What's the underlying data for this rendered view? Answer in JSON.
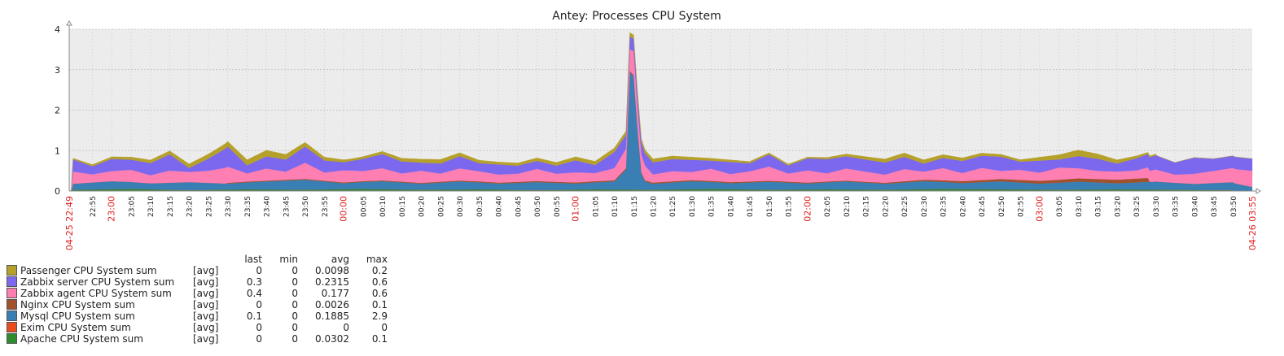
{
  "chart_data": {
    "type": "area",
    "stacked": true,
    "title": "Antey: Processes CPU System",
    "ylim": [
      0,
      4
    ],
    "yticks": [
      "0",
      "1",
      "2",
      "3",
      "4"
    ],
    "x_start_label": "04-25 22:49",
    "x_end_label": "04-26 03:55",
    "x_range": [
      "22:49",
      "03:55"
    ],
    "x_tick_labels": [
      "22:55",
      "23:00",
      "23:05",
      "23:10",
      "23:15",
      "23:20",
      "23:25",
      "23:30",
      "23:35",
      "23:40",
      "23:45",
      "23:50",
      "23:55",
      "00:00",
      "00:05",
      "00:10",
      "00:15",
      "00:20",
      "00:25",
      "00:30",
      "00:35",
      "00:40",
      "00:45",
      "00:50",
      "00:55",
      "01:00",
      "01:05",
      "01:10",
      "01:15",
      "01:20",
      "01:25",
      "01:30",
      "01:35",
      "01:40",
      "01:45",
      "01:50",
      "01:55",
      "02:00",
      "02:05",
      "02:10",
      "02:15",
      "02:20",
      "02:25",
      "02:30",
      "02:35",
      "02:40",
      "02:45",
      "02:50",
      "02:55",
      "03:00",
      "03:05",
      "03:10",
      "03:15",
      "03:20",
      "03:25",
      "03:30",
      "03:35",
      "03:40",
      "03:45",
      "03:50"
    ],
    "x_hour_labels": [
      "23:00",
      "00:00",
      "01:00",
      "02:00",
      "03:00"
    ],
    "grid": true,
    "legend_position": "bottom-left",
    "legend_headers": {
      "last": "last",
      "min": "min",
      "avg": "avg",
      "max": "max"
    },
    "series": [
      {
        "name": "Passenger CPU System sum",
        "func": "[avg]",
        "color": "#B5A12A",
        "last": "0",
        "min": "0",
        "avg": "0.0098",
        "max": "0.2",
        "x": [
          "22:50",
          "23:20",
          "23:40",
          "00:02",
          "00:25",
          "00:40",
          "01:12",
          "01:40",
          "02:00",
          "02:25",
          "02:55",
          "03:10",
          "03:30"
        ],
        "values": [
          0.03,
          0.1,
          0.15,
          0.05,
          0.1,
          0.06,
          0.1,
          0.05,
          0.03,
          0.1,
          0.05,
          0.15,
          0.03
        ]
      },
      {
        "name": "Zabbix server CPU System sum",
        "func": "[avg]",
        "color": "#7B68EE",
        "last": "0.3",
        "min": "0",
        "avg": "0.2315",
        "max": "0.6",
        "x": [
          "22:50",
          "22:55",
          "23:00",
          "23:05",
          "23:10",
          "23:15",
          "23:20",
          "23:25",
          "23:30",
          "23:35",
          "23:40",
          "23:45",
          "23:50",
          "23:55",
          "00:00",
          "00:05",
          "00:10",
          "00:15",
          "00:20",
          "00:25",
          "00:30",
          "00:35",
          "00:40",
          "00:45",
          "00:50",
          "00:55",
          "01:00",
          "01:05",
          "01:10",
          "01:15",
          "01:20",
          "01:25",
          "01:30",
          "01:35",
          "01:40",
          "01:45",
          "01:50",
          "01:55",
          "02:00",
          "02:05",
          "02:10",
          "02:15",
          "02:20",
          "02:25",
          "02:30",
          "02:35",
          "02:40",
          "02:45",
          "02:50",
          "02:55",
          "03:00",
          "03:05",
          "03:10",
          "03:15",
          "03:20",
          "03:25",
          "03:30",
          "03:35",
          "03:40",
          "03:45",
          "03:50",
          "03:55"
        ],
        "values": [
          0.3,
          0.2,
          0.3,
          0.25,
          0.3,
          0.4,
          0.1,
          0.3,
          0.5,
          0.2,
          0.3,
          0.3,
          0.4,
          0.3,
          0.2,
          0.3,
          0.35,
          0.3,
          0.2,
          0.25,
          0.3,
          0.2,
          0.25,
          0.2,
          0.2,
          0.2,
          0.3,
          0.2,
          0.4,
          0.3,
          0.3,
          0.3,
          0.3,
          0.2,
          0.3,
          0.2,
          0.3,
          0.2,
          0.3,
          0.35,
          0.3,
          0.3,
          0.3,
          0.3,
          0.2,
          0.25,
          0.3,
          0.3,
          0.35,
          0.2,
          0.3,
          0.2,
          0.3,
          0.3,
          0.2,
          0.3,
          0.35,
          0.3,
          0.4,
          0.3,
          0.3,
          0.3
        ]
      },
      {
        "name": "Zabbix agent CPU System sum",
        "func": "[avg]",
        "color": "#FF7FB3",
        "last": "0.4",
        "min": "0",
        "avg": "0.177",
        "max": "0.6",
        "x": [
          "22:50",
          "22:55",
          "23:00",
          "23:05",
          "23:10",
          "23:15",
          "23:20",
          "23:25",
          "23:30",
          "23:35",
          "23:40",
          "23:45",
          "23:50",
          "23:55",
          "00:00",
          "00:05",
          "00:10",
          "00:15",
          "00:20",
          "00:25",
          "00:30",
          "00:35",
          "00:40",
          "00:45",
          "00:50",
          "00:55",
          "01:00",
          "01:05",
          "01:10",
          "01:15",
          "01:20",
          "01:25",
          "01:30",
          "01:35",
          "01:40",
          "01:45",
          "01:50",
          "01:55",
          "02:00",
          "02:05",
          "02:10",
          "02:15",
          "02:20",
          "02:25",
          "02:30",
          "02:35",
          "02:40",
          "02:45",
          "02:50",
          "02:55",
          "03:00",
          "03:05",
          "03:10",
          "03:15",
          "03:20",
          "03:25",
          "03:30",
          "03:35",
          "03:40",
          "03:45",
          "03:50",
          "03:55"
        ],
        "values": [
          0.3,
          0.2,
          0.25,
          0.3,
          0.2,
          0.3,
          0.25,
          0.3,
          0.4,
          0.2,
          0.3,
          0.2,
          0.4,
          0.2,
          0.3,
          0.25,
          0.3,
          0.2,
          0.3,
          0.2,
          0.3,
          0.25,
          0.2,
          0.2,
          0.3,
          0.2,
          0.25,
          0.2,
          0.3,
          0.6,
          0.2,
          0.25,
          0.2,
          0.3,
          0.2,
          0.25,
          0.35,
          0.2,
          0.3,
          0.2,
          0.3,
          0.25,
          0.2,
          0.3,
          0.2,
          0.3,
          0.2,
          0.3,
          0.2,
          0.25,
          0.2,
          0.3,
          0.25,
          0.2,
          0.2,
          0.2,
          0.3,
          0.2,
          0.25,
          0.3,
          0.35,
          0.4
        ]
      },
      {
        "name": "Nginx CPU System sum",
        "func": "[avg]",
        "color": "#A0522D",
        "last": "0",
        "min": "0",
        "avg": "0.0026",
        "max": "0.1",
        "x": [
          "23:30",
          "00:10",
          "01:15",
          "02:15",
          "03:28"
        ],
        "values": [
          0.02,
          0.02,
          0.03,
          0.02,
          0.1
        ]
      },
      {
        "name": "Mysql CPU System sum",
        "func": "[avg]",
        "color": "#3A7FB3",
        "last": "0.1",
        "min": "0",
        "avg": "0.1885",
        "max": "2.9",
        "x": [
          "22:50",
          "23:00",
          "23:10",
          "23:20",
          "23:30",
          "23:40",
          "23:50",
          "00:00",
          "00:10",
          "00:20",
          "00:30",
          "00:40",
          "00:50",
          "01:00",
          "01:10",
          "01:13",
          "01:14",
          "01:15",
          "01:16",
          "01:17",
          "01:18",
          "01:20",
          "01:30",
          "01:40",
          "01:50",
          "02:00",
          "02:10",
          "02:20",
          "02:30",
          "02:40",
          "02:50",
          "03:00",
          "03:10",
          "03:20",
          "03:30",
          "03:40",
          "03:50",
          "03:55"
        ],
        "values": [
          0.15,
          0.2,
          0.15,
          0.2,
          0.15,
          0.2,
          0.25,
          0.15,
          0.2,
          0.15,
          0.2,
          0.15,
          0.2,
          0.15,
          0.2,
          0.5,
          2.9,
          2.8,
          1.5,
          0.4,
          0.2,
          0.15,
          0.2,
          0.15,
          0.2,
          0.15,
          0.2,
          0.15,
          0.2,
          0.15,
          0.2,
          0.15,
          0.2,
          0.15,
          0.2,
          0.15,
          0.2,
          0.1
        ]
      },
      {
        "name": "Exim CPU System sum",
        "func": "[avg]",
        "color": "#E84B1E",
        "last": "0",
        "min": "0",
        "avg": "0",
        "max": "0",
        "x": [],
        "values": []
      },
      {
        "name": "Apache CPU System sum",
        "func": "[avg]",
        "color": "#2E8B2E",
        "last": "0",
        "min": "0",
        "avg": "0.0302",
        "max": "0.1",
        "x": [
          "22:50",
          "23:05",
          "23:20",
          "23:35",
          "23:50",
          "00:05",
          "00:20",
          "00:35",
          "00:50",
          "01:05",
          "01:20",
          "01:35",
          "01:50",
          "02:05",
          "02:20",
          "02:35",
          "02:50",
          "03:05",
          "03:20",
          "03:35",
          "03:50"
        ],
        "values": [
          0.03,
          0.05,
          0.02,
          0.04,
          0.03,
          0.05,
          0.03,
          0.04,
          0.02,
          0.04,
          0.03,
          0.05,
          0.03,
          0.04,
          0.03,
          0.05,
          0.04,
          0.03,
          0.04,
          0.03,
          0.02
        ]
      }
    ]
  }
}
